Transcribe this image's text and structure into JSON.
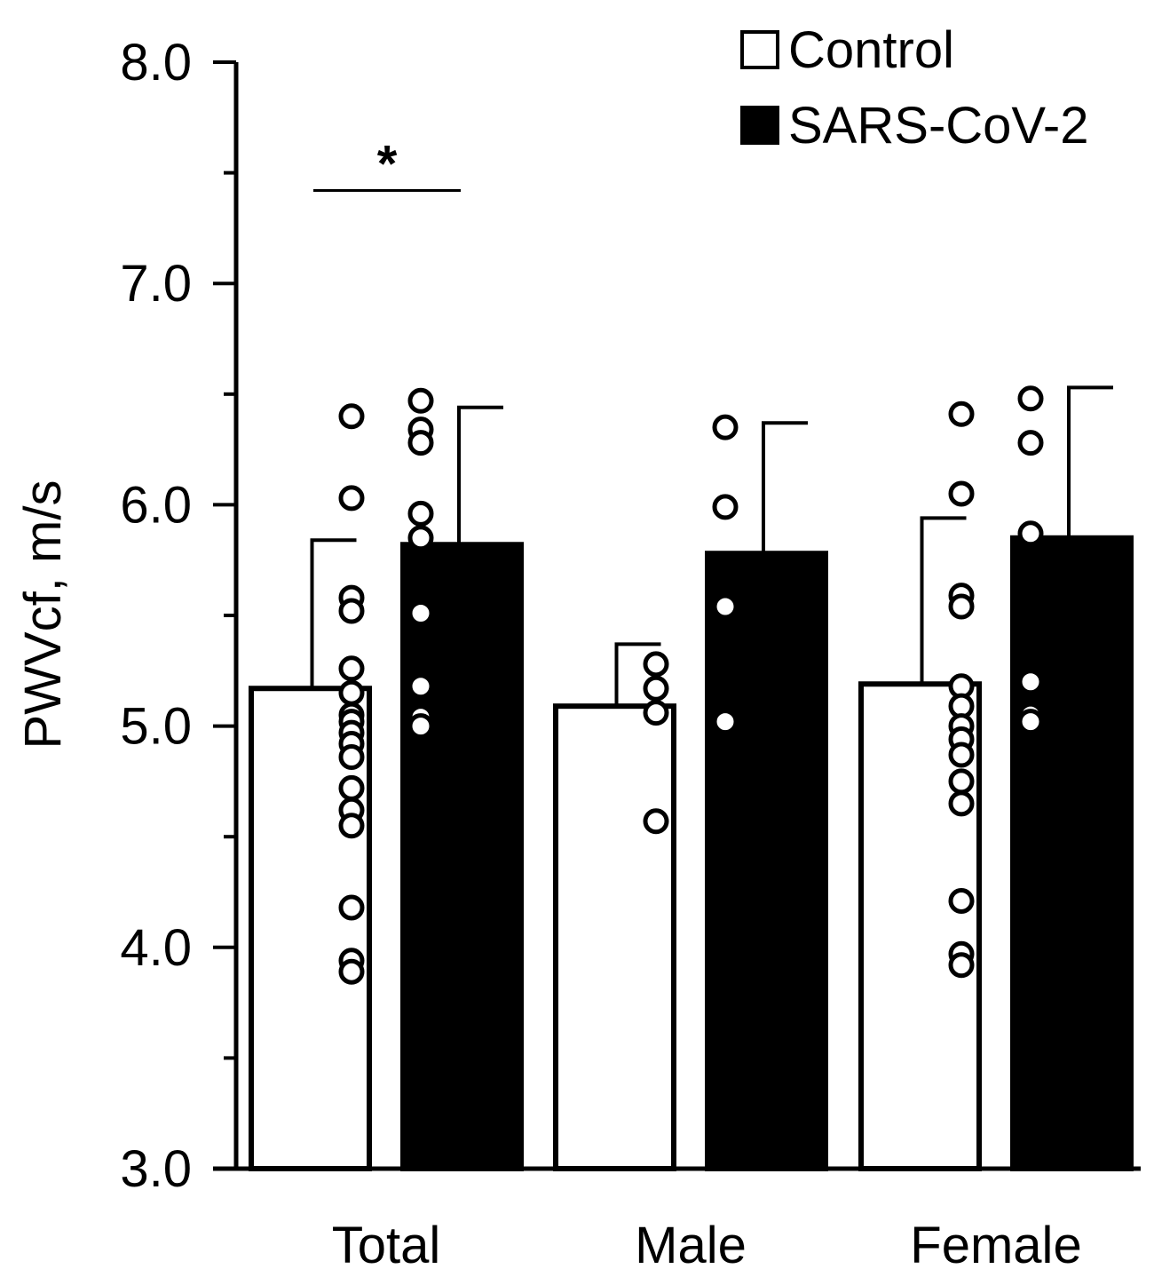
{
  "chart_data": {
    "type": "bar",
    "ylabel": "PWVcf, m/s",
    "ylim": [
      3.0,
      8.0
    ],
    "yticks": [
      "3.0",
      "4.0",
      "5.0",
      "6.0",
      "7.0",
      "8.0"
    ],
    "grid": false,
    "legend_position": "top-right",
    "categories": [
      "Total",
      "Male",
      "Female"
    ],
    "series": [
      {
        "name": "Control",
        "color": "#ffffff",
        "values": [
          5.17,
          5.09,
          5.19
        ],
        "error_upper": [
          5.84,
          5.37,
          5.94
        ],
        "points": [
          [
            6.4,
            6.03,
            5.58,
            5.52,
            5.26,
            5.15,
            5.05,
            5.02,
            4.97,
            4.92,
            4.86,
            4.72,
            4.62,
            4.55,
            4.18,
            3.94,
            3.89
          ],
          [
            5.28,
            5.17,
            5.06,
            4.57
          ],
          [
            6.41,
            6.05,
            5.59,
            5.54,
            5.18,
            5.09,
            5.0,
            4.94,
            4.87,
            4.75,
            4.65,
            4.21,
            3.97,
            3.92
          ]
        ]
      },
      {
        "name": "SARS-CoV-2",
        "color": "#000000",
        "values": [
          5.82,
          5.78,
          5.85
        ],
        "error_upper": [
          6.44,
          6.37,
          6.53
        ],
        "points": [
          [
            6.47,
            6.34,
            6.28,
            5.96,
            5.85,
            5.51,
            5.18,
            5.04,
            5.0
          ],
          [
            6.35,
            5.99,
            5.54,
            5.02
          ],
          [
            6.48,
            6.28,
            5.87,
            5.2,
            5.05,
            5.02
          ]
        ]
      }
    ],
    "annotations": [
      {
        "text": "*",
        "category": "Total",
        "bracket_y": 7.42
      }
    ]
  }
}
